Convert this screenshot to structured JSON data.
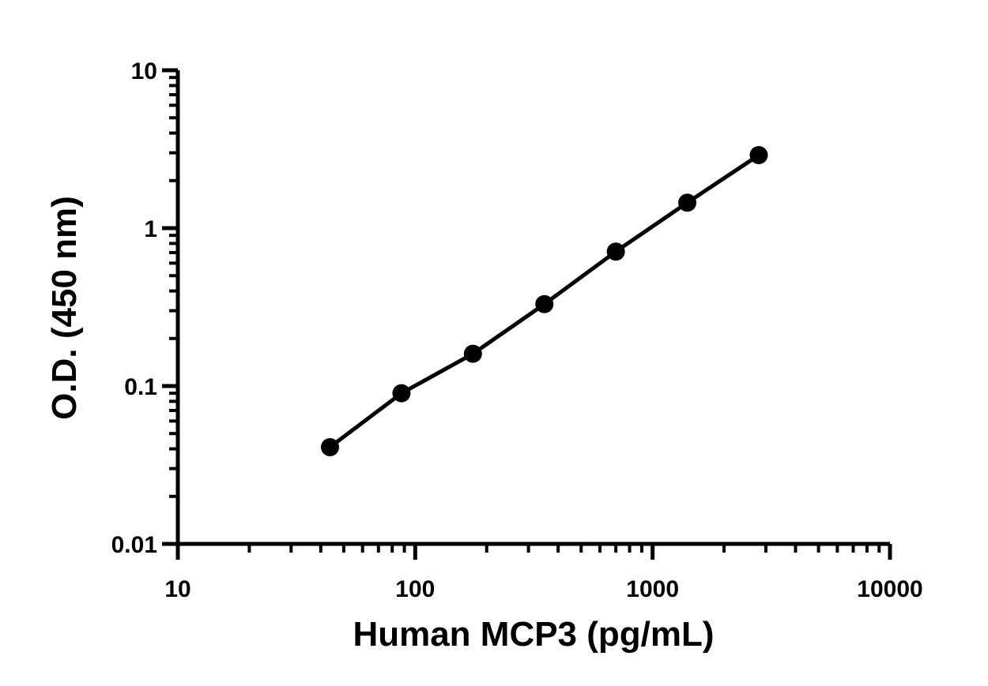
{
  "chart_data": {
    "type": "line",
    "title": "",
    "xlabel": "Human MCP3 (pg/mL)",
    "ylabel": "O.D. (450 nm)",
    "x_scale": "log",
    "y_scale": "log",
    "xlim": [
      10,
      10000
    ],
    "ylim": [
      0.01,
      10
    ],
    "x_ticks": [
      10,
      100,
      1000,
      10000
    ],
    "x_tick_labels": [
      "10",
      "100",
      "1000",
      "10000"
    ],
    "y_ticks": [
      0.01,
      0.1,
      1,
      10
    ],
    "y_tick_labels": [
      "0.01",
      "0.1",
      "1",
      "10"
    ],
    "grid": false,
    "legend": "none",
    "series": [
      {
        "x": [
          43.75,
          87.5,
          175,
          350,
          700,
          1400,
          2800
        ],
        "y": [
          0.041,
          0.09,
          0.16,
          0.33,
          0.71,
          1.45,
          2.9
        ],
        "marker": "circle",
        "color": "#000000"
      }
    ]
  }
}
